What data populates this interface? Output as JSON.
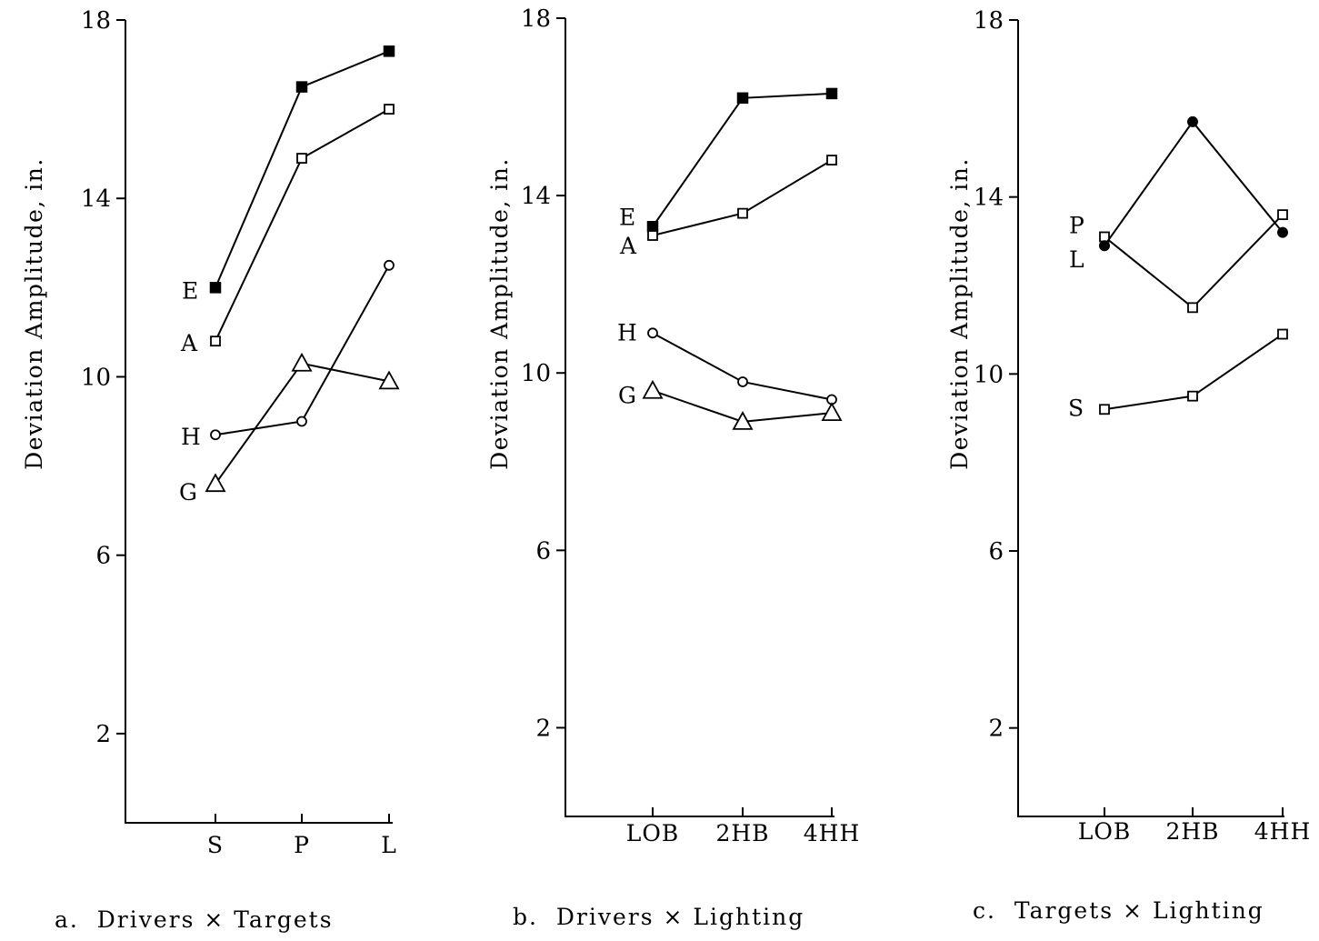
{
  "chart_data": [
    {
      "type": "line",
      "caption": "a.  Drivers × Targets",
      "ylabel": "Deviation Amplitude,  in.",
      "ylim": [
        0,
        18
      ],
      "yticks": [
        "2",
        "6",
        "10",
        "14",
        "18"
      ],
      "categories": [
        "S",
        "P",
        "L"
      ],
      "series": [
        {
          "name": "E",
          "marker": "filled-square",
          "values": [
            12.0,
            16.5,
            17.3
          ]
        },
        {
          "name": "A",
          "marker": "open-square",
          "values": [
            10.8,
            14.9,
            16.0
          ]
        },
        {
          "name": "H",
          "marker": "open-circle",
          "values": [
            8.7,
            9.0,
            12.5
          ]
        },
        {
          "name": "G",
          "marker": "open-triangle",
          "values": [
            7.6,
            10.3,
            9.9
          ]
        }
      ]
    },
    {
      "type": "line",
      "caption": "b.  Drivers × Lighting",
      "ylabel": "Deviation Amplitude,  in.",
      "ylim": [
        0,
        18
      ],
      "yticks": [
        "2",
        "6",
        "10",
        "14",
        "18"
      ],
      "categories": [
        "LOB",
        "2HB",
        "4HH"
      ],
      "series": [
        {
          "name": "E",
          "marker": "filled-square",
          "values": [
            13.3,
            16.2,
            16.3
          ]
        },
        {
          "name": "A",
          "marker": "open-square",
          "values": [
            13.1,
            13.6,
            14.8
          ]
        },
        {
          "name": "H",
          "marker": "open-circle",
          "values": [
            10.9,
            9.8,
            9.4
          ]
        },
        {
          "name": "G",
          "marker": "open-triangle",
          "values": [
            9.6,
            8.9,
            9.1
          ]
        }
      ]
    },
    {
      "type": "line",
      "caption": "c.  Targets × Lighting",
      "ylabel": "Deviation Amplitude,  in.",
      "ylim": [
        0,
        18
      ],
      "yticks": [
        "2",
        "6",
        "10",
        "14",
        "18"
      ],
      "categories": [
        "LOB",
        "2HB",
        "4HH"
      ],
      "series": [
        {
          "name": "P",
          "marker": "open-square",
          "values": [
            13.1,
            11.5,
            13.6
          ]
        },
        {
          "name": "L",
          "marker": "filled-circle",
          "values": [
            12.9,
            15.7,
            13.2
          ]
        },
        {
          "name": "S",
          "marker": "open-square",
          "values": [
            9.2,
            9.5,
            10.9
          ]
        }
      ]
    }
  ]
}
